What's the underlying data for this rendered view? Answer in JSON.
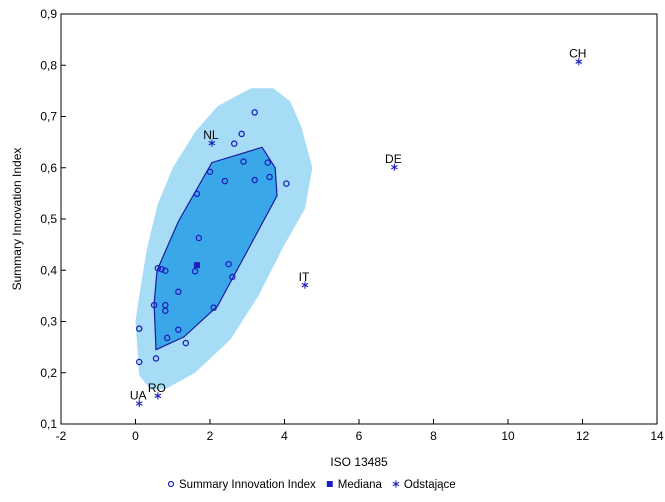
{
  "chart_data": {
    "type": "scatter",
    "xlabel": "ISO 13485",
    "ylabel": "Summary Innovation Index",
    "xlim": [
      -2,
      14
    ],
    "ylim": [
      0.1,
      0.9
    ],
    "grid": false,
    "x_ticks": [
      -2,
      0,
      2,
      4,
      6,
      8,
      10,
      12,
      14
    ],
    "x_tick_labels": [
      "-2",
      "0",
      "2",
      "4",
      "6",
      "8",
      "10",
      "12",
      "14"
    ],
    "y_ticks": [
      0.1,
      0.2,
      0.3,
      0.4,
      0.5,
      0.6,
      0.7,
      0.8,
      0.9
    ],
    "y_tick_labels": [
      "0,1",
      "0,2",
      "0,3",
      "0,4",
      "0,5",
      "0,6",
      "0,7",
      "0,8",
      "0,9"
    ],
    "legend_position": "bottom",
    "legend": [
      {
        "label": "Summary Innovation Index",
        "marker": "circle"
      },
      {
        "label": "Mediana",
        "marker": "square"
      },
      {
        "label": "Odstające",
        "marker": "asterisk"
      }
    ],
    "colors": {
      "points": "#1f1fbf",
      "outer_region": "#a6dcf5",
      "inner_region": "#3aa8e8",
      "inner_border": "#1a1aa0"
    },
    "series": [
      {
        "name": "Summary Innovation Index",
        "marker": "circle",
        "points": [
          [
            0.1,
            0.286
          ],
          [
            0.1,
            0.221
          ],
          [
            0.55,
            0.228
          ],
          [
            0.5,
            0.332
          ],
          [
            0.6,
            0.404
          ],
          [
            0.7,
            0.402
          ],
          [
            0.8,
            0.399
          ],
          [
            0.8,
            0.332
          ],
          [
            0.8,
            0.321
          ],
          [
            0.85,
            0.268
          ],
          [
            1.15,
            0.358
          ],
          [
            1.15,
            0.284
          ],
          [
            1.35,
            0.258
          ],
          [
            1.6,
            0.398
          ],
          [
            1.7,
            0.463
          ],
          [
            1.65,
            0.549
          ],
          [
            2.0,
            0.592
          ],
          [
            2.1,
            0.327
          ],
          [
            2.4,
            0.574
          ],
          [
            2.5,
            0.412
          ],
          [
            2.6,
            0.387
          ],
          [
            2.65,
            0.647
          ],
          [
            2.85,
            0.666
          ],
          [
            2.9,
            0.612
          ],
          [
            3.2,
            0.708
          ],
          [
            3.2,
            0.576
          ],
          [
            3.55,
            0.61
          ],
          [
            3.6,
            0.582
          ],
          [
            4.05,
            0.569
          ]
        ]
      },
      {
        "name": "Mediana",
        "marker": "square",
        "points": [
          [
            1.65,
            0.41
          ]
        ]
      },
      {
        "name": "Odstające",
        "marker": "asterisk",
        "points": [
          {
            "label": "CH",
            "x": 11.9,
            "y": 0.807
          },
          {
            "label": "DE",
            "x": 6.95,
            "y": 0.601
          },
          {
            "label": "NL",
            "x": 2.05,
            "y": 0.648
          },
          {
            "label": "IT",
            "x": 4.55,
            "y": 0.371
          },
          {
            "label": "RO",
            "x": 0.6,
            "y": 0.155
          },
          {
            "label": "UA",
            "x": 0.1,
            "y": 0.14
          }
        ]
      }
    ],
    "regions": {
      "outer": [
        [
          0.0,
          0.3
        ],
        [
          0.1,
          0.35
        ],
        [
          0.3,
          0.44
        ],
        [
          0.6,
          0.53
        ],
        [
          1.0,
          0.6
        ],
        [
          1.6,
          0.67
        ],
        [
          2.2,
          0.72
        ],
        [
          2.6,
          0.736
        ],
        [
          3.1,
          0.755
        ],
        [
          3.7,
          0.755
        ],
        [
          4.15,
          0.73
        ],
        [
          4.45,
          0.68
        ],
        [
          4.75,
          0.6
        ],
        [
          4.55,
          0.52
        ],
        [
          4.0,
          0.45
        ],
        [
          3.3,
          0.35
        ],
        [
          2.55,
          0.265
        ],
        [
          1.6,
          0.2
        ],
        [
          0.8,
          0.168
        ],
        [
          0.4,
          0.168
        ],
        [
          0.1,
          0.195
        ]
      ],
      "inner": [
        [
          0.55,
          0.245
        ],
        [
          0.5,
          0.335
        ],
        [
          0.58,
          0.4
        ],
        [
          1.15,
          0.495
        ],
        [
          2.05,
          0.61
        ],
        [
          3.4,
          0.64
        ],
        [
          3.75,
          0.6
        ],
        [
          3.8,
          0.545
        ],
        [
          2.2,
          0.33
        ],
        [
          1.3,
          0.27
        ]
      ]
    }
  }
}
